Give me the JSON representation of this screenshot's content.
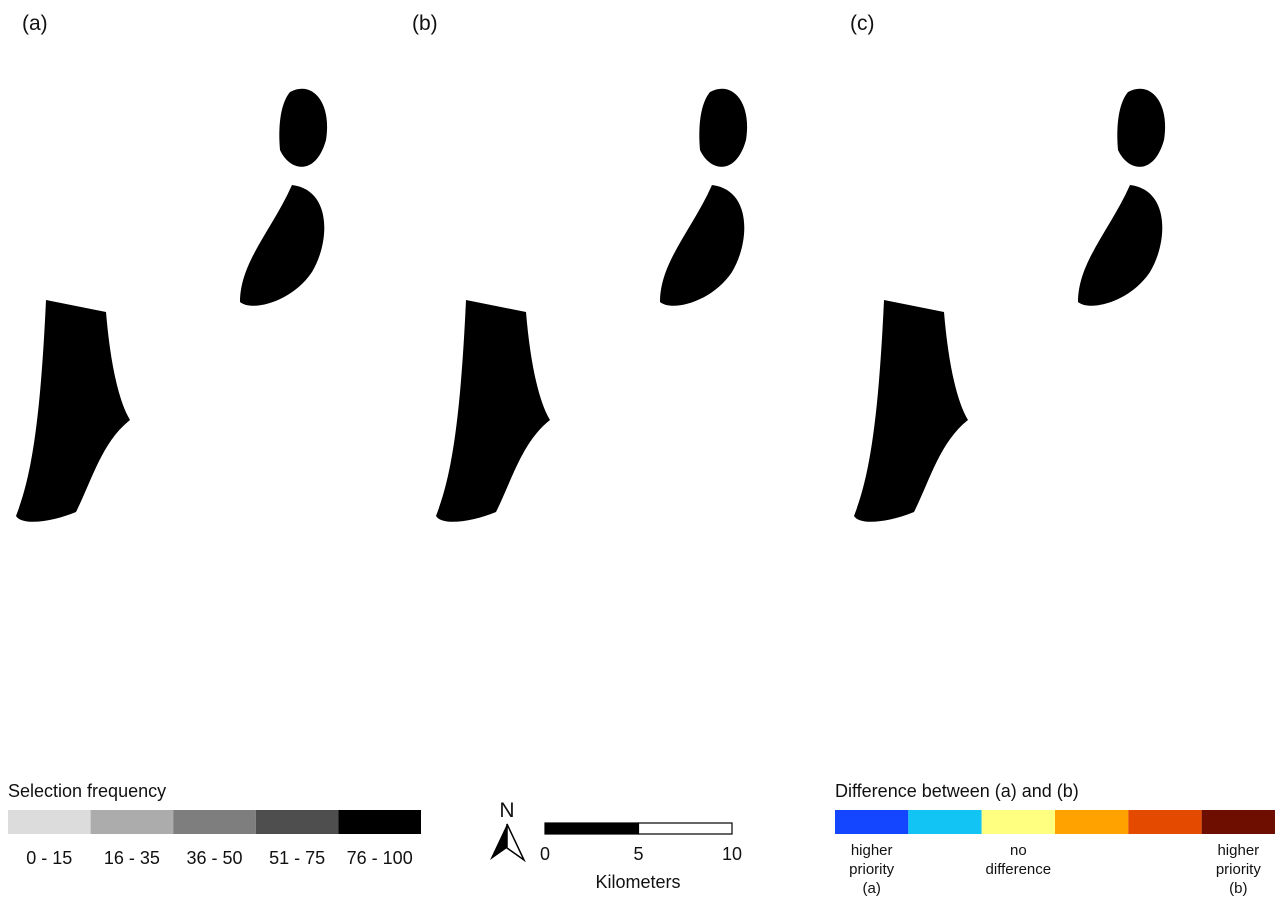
{
  "panels": [
    {
      "label": "(a)"
    },
    {
      "label": "(b)"
    },
    {
      "label": "(c)"
    }
  ],
  "selection_legend": {
    "title": "Selection frequency",
    "classes": [
      {
        "label": "0 - 15",
        "color": "#dcdcdc"
      },
      {
        "label": "16 - 35",
        "color": "#acacac"
      },
      {
        "label": "36 - 50",
        "color": "#7e7e7e"
      },
      {
        "label": "51 - 75",
        "color": "#4e4e4e"
      },
      {
        "label": "76 - 100",
        "color": "#000000"
      }
    ]
  },
  "north_arrow": {
    "label": "N"
  },
  "scale_bar": {
    "ticks": [
      0,
      5,
      10
    ],
    "unit": "Kilometers"
  },
  "difference_legend": {
    "title": "Difference between (a) and (b)",
    "colors": [
      "#1446ff",
      "#12c4f4",
      "#ffff80",
      "#ffa200",
      "#e44a00",
      "#6e0e00"
    ],
    "labels": [
      {
        "lines": [
          "higher",
          "priority",
          "(a)"
        ]
      },
      {
        "lines": [
          "no",
          "difference"
        ]
      },
      {
        "lines": [
          "higher",
          "priority",
          "(b)"
        ]
      }
    ]
  }
}
